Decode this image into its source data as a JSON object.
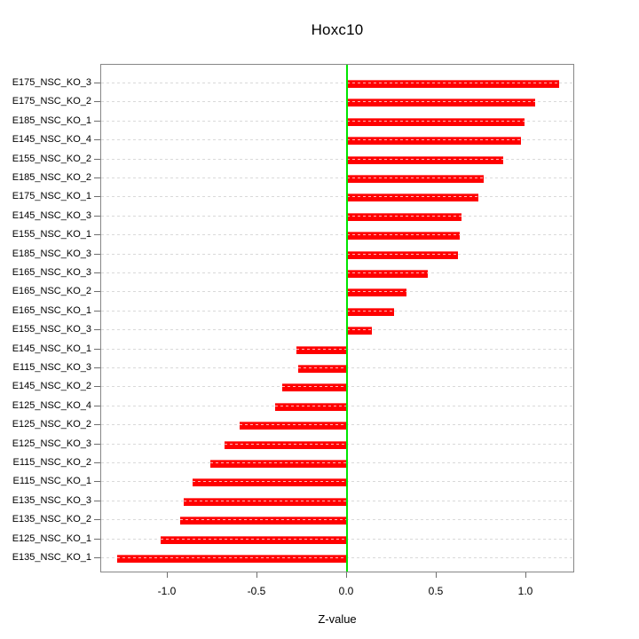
{
  "window": {
    "background": "#ffffff"
  },
  "chart_data": {
    "type": "bar",
    "orientation": "horizontal",
    "title": "Hoxc10",
    "xlabel": "Z-value",
    "ylabel": "",
    "categories": [
      "E175_NSC_KO_3",
      "E175_NSC_KO_2",
      "E185_NSC_KO_1",
      "E145_NSC_KO_4",
      "E155_NSC_KO_2",
      "E185_NSC_KO_2",
      "E175_NSC_KO_1",
      "E145_NSC_KO_3",
      "E155_NSC_KO_1",
      "E185_NSC_KO_3",
      "E165_NSC_KO_3",
      "E165_NSC_KO_2",
      "E165_NSC_KO_1",
      "E155_NSC_KO_3",
      "E145_NSC_KO_1",
      "E115_NSC_KO_3",
      "E145_NSC_KO_2",
      "E125_NSC_KO_4",
      "E125_NSC_KO_2",
      "E125_NSC_KO_3",
      "E115_NSC_KO_2",
      "E115_NSC_KO_1",
      "E135_NSC_KO_3",
      "E135_NSC_KO_2",
      "E125_NSC_KO_1",
      "E135_NSC_KO_1"
    ],
    "values": [
      1.18,
      1.05,
      0.99,
      0.97,
      0.87,
      0.76,
      0.73,
      0.64,
      0.63,
      0.62,
      0.45,
      0.33,
      0.26,
      0.14,
      -0.28,
      -0.27,
      -0.36,
      -0.4,
      -0.6,
      -0.68,
      -0.76,
      -0.86,
      -0.91,
      -0.93,
      -1.04,
      -1.28
    ],
    "xlim": [
      -1.37,
      1.27
    ],
    "xticks": [
      -1.0,
      -0.5,
      0.0,
      0.5,
      1.0
    ],
    "xtick_labels": [
      "-1.0",
      "-0.5",
      "0.0",
      "0.5",
      "1.0"
    ],
    "grid": "horizontal-dashed",
    "legend_position": "none",
    "colors": {
      "bar": "#ff0000",
      "zero_line": "#00e600",
      "grid": "#d9d9d9",
      "axis_box": "#878787",
      "tick": "#6e6e6e",
      "text": "#000000"
    }
  }
}
